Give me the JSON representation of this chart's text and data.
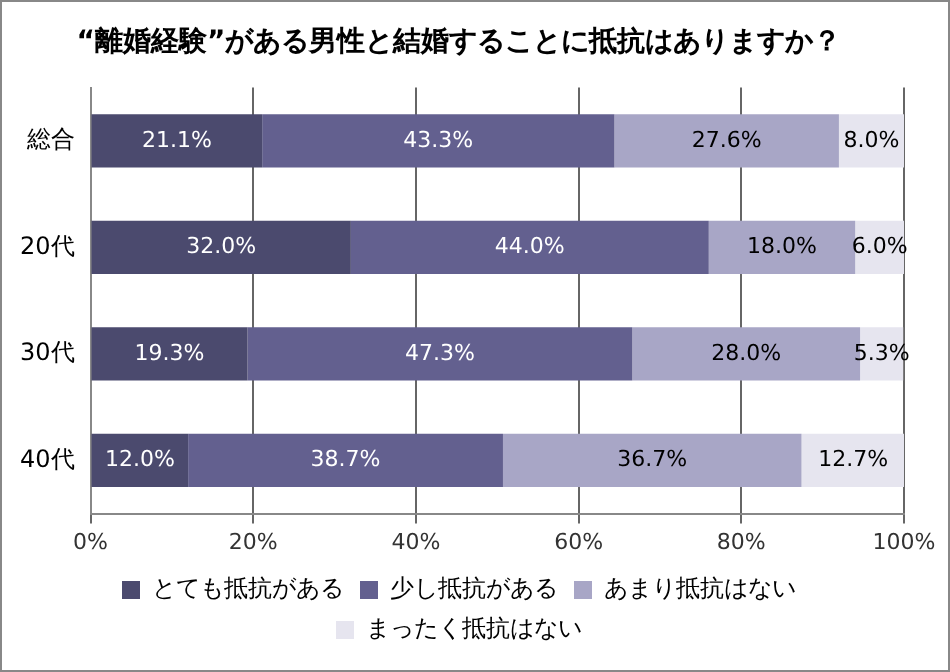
{
  "chart_data": {
    "type": "bar",
    "orientation": "horizontal",
    "stacked": true,
    "title": "“離婚経験”がある男性と結婚することに抵抗はありますか？",
    "categories": [
      "総合",
      "20代",
      "30代",
      "40代"
    ],
    "series": [
      {
        "name": "とても抵抗がある",
        "color": "#4b4a6e",
        "values": [
          21.1,
          32.0,
          19.3,
          12.0
        ],
        "value_labels": [
          "21.1%",
          "32.0%",
          "19.3%",
          "12.0%"
        ]
      },
      {
        "name": "少し抵抗がある",
        "color": "#63608f",
        "values": [
          43.3,
          44.0,
          47.3,
          38.7
        ],
        "value_labels": [
          "43.3%",
          "44.0%",
          "47.3%",
          "38.7%"
        ]
      },
      {
        "name": "あまり抵抗はない",
        "color": "#a8a6c6",
        "values": [
          27.6,
          18.0,
          28.0,
          36.7
        ],
        "value_labels": [
          "27.6%",
          "18.0%",
          "28.0%",
          "36.7%"
        ]
      },
      {
        "name": "まったく抵抗はない",
        "color": "#e6e5ef",
        "values": [
          8.0,
          6.0,
          5.3,
          12.7
        ],
        "value_labels": [
          "8.0%",
          "6.0%",
          "5.3%",
          "12.7%"
        ]
      }
    ],
    "xlim": [
      0,
      100
    ],
    "xticks": [
      {
        "value": 0,
        "label": "0%"
      },
      {
        "value": 20,
        "label": "20%"
      },
      {
        "value": 40,
        "label": "40%"
      },
      {
        "value": 60,
        "label": "60%"
      },
      {
        "value": 80,
        "label": "80%"
      },
      {
        "value": 100,
        "label": "100%"
      }
    ],
    "grid": "x",
    "legend": "bottom"
  }
}
